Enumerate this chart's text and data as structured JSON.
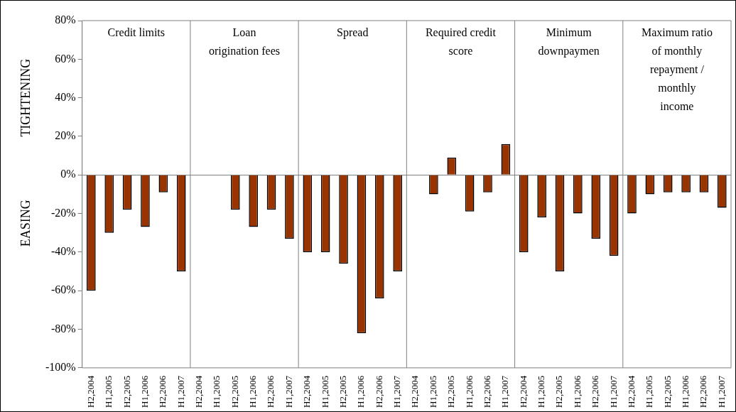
{
  "chart_data": {
    "type": "bar",
    "categories": [
      "H2,2004",
      "H1,2005",
      "H2,2005",
      "H1,2006",
      "H2,2006",
      "H1,2007",
      "H2,2004",
      "H1,2005",
      "H2,2005",
      "H1,2006",
      "H2,2006",
      "H1,2007",
      "H2,2004",
      "H1,2005",
      "H2,2005",
      "H1,2006",
      "H2,2006",
      "H1,2007",
      "H2,2004",
      "H1,2005",
      "H2,2005",
      "H1,2006",
      "H2,2006",
      "H1,2007",
      "H2,2004",
      "H1,2005",
      "H2,2005",
      "H1,2006",
      "H2,2006",
      "H1,2007",
      "H2,2004",
      "H1,2005",
      "H2,2005",
      "H1,2006",
      "H2,2006",
      "H1,2007"
    ],
    "values": [
      -60,
      -30,
      -18,
      -27,
      -9,
      -50,
      0,
      0,
      -18,
      -27,
      -18,
      -33,
      -40,
      -40,
      -46,
      -82,
      -64,
      -50,
      0,
      -10,
      9,
      -19,
      -9,
      16,
      -40,
      -22,
      -50,
      -20,
      -33,
      -42,
      -20,
      -10,
      -9,
      -9,
      -9,
      -17
    ],
    "color": "#993300",
    "ylim": [
      -100,
      80
    ],
    "yticks": [
      {
        "value": -100,
        "label": "-100%"
      },
      {
        "value": -80,
        "label": "-80%"
      },
      {
        "value": -60,
        "label": "-60%"
      },
      {
        "value": -40,
        "label": "-40%"
      },
      {
        "value": -20,
        "label": "-20%"
      },
      {
        "value": 0,
        "label": "0%"
      },
      {
        "value": 20,
        "label": "20%"
      },
      {
        "value": 40,
        "label": "40%"
      },
      {
        "value": 60,
        "label": "60%"
      },
      {
        "value": 80,
        "label": "80%"
      }
    ],
    "annotations": [
      "TIGHTENING",
      "EASING",
      "Credit limits",
      "Loan origination fees",
      "Spread",
      "Required credit score",
      "Minimum downpaymen",
      "Maximum ratio of monthly repayment / monthly income"
    ],
    "legend": false
  }
}
